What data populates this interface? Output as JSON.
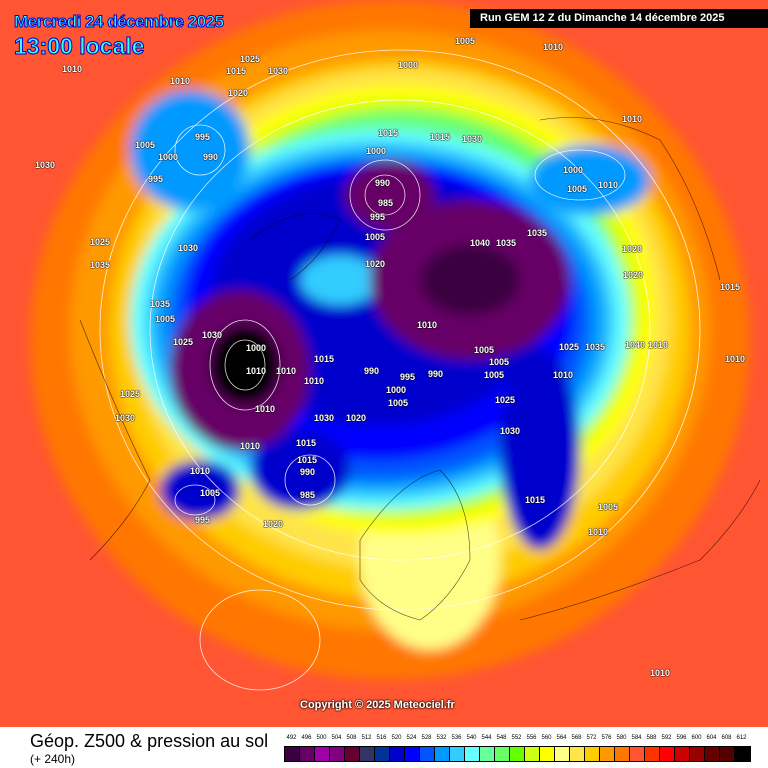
{
  "header": {
    "date": "Mercredi 24 décembre 2025",
    "time": "13:00 locale",
    "run": "Run GEM 12 Z du Dimanche 14 décembre 2025"
  },
  "footer": {
    "title": "Géop. Z500 & pression au sol",
    "subtitle": "(+ 240h)",
    "copyright": "Copyright © 2025 Meteociel.fr"
  },
  "legend": {
    "values": [
      "492",
      "496",
      "500",
      "504",
      "508",
      "512",
      "516",
      "520",
      "524",
      "528",
      "532",
      "536",
      "540",
      "544",
      "548",
      "552",
      "556",
      "560",
      "564",
      "568",
      "572",
      "576",
      "580",
      "584",
      "588",
      "592",
      "596",
      "600",
      "604",
      "608",
      "612"
    ],
    "colors": [
      "#3a0040",
      "#660066",
      "#a000a8",
      "#800080",
      "#660033",
      "#333366",
      "#003399",
      "#0000cc",
      "#0000ff",
      "#0055ff",
      "#0099ff",
      "#33ccff",
      "#66ffff",
      "#66ff99",
      "#66ff66",
      "#66ff00",
      "#ccff11",
      "#ffff00",
      "#ffff88",
      "#ffe44a",
      "#ffcc00",
      "#ff9900",
      "#ff7700",
      "#ff5533",
      "#ff3300",
      "#ff0000",
      "#cc0000",
      "#990000",
      "#660000",
      "#550000",
      "#000000"
    ]
  },
  "pressure_labels": [
    "1010",
    "1015",
    "1010",
    "1020",
    "1025",
    "1030",
    "1005",
    "1000",
    "1010",
    "995",
    "990",
    "1005",
    "1000",
    "995",
    "1015",
    "1030",
    "1000",
    "990",
    "985",
    "995",
    "1005",
    "1020",
    "1040",
    "1035",
    "1035",
    "1000",
    "1005",
    "1010",
    "1010",
    "1030",
    "1035",
    "1025",
    "1005",
    "1000",
    "1010",
    "1010",
    "1015",
    "990",
    "995",
    "990",
    "1000",
    "1005",
    "1010",
    "1030",
    "1020",
    "1015",
    "1010",
    "990",
    "985",
    "1010",
    "1005",
    "995",
    "1020",
    "1030",
    "1005",
    "1025",
    "1030",
    "1035",
    "1025",
    "1030",
    "1010",
    "1015",
    "1015",
    "1010",
    "1020",
    "1020",
    "1015",
    "1010",
    "1005",
    "1005",
    "1010",
    "1025",
    "1035",
    "1025",
    "1030",
    "1040",
    "1010",
    "1015",
    "1005",
    "1010",
    "1010"
  ],
  "map": {
    "type": "polar-stereographic-northern-hemisphere",
    "field": "Z500 geopotential (dam) with sea-level pressure isobars (hPa)"
  }
}
